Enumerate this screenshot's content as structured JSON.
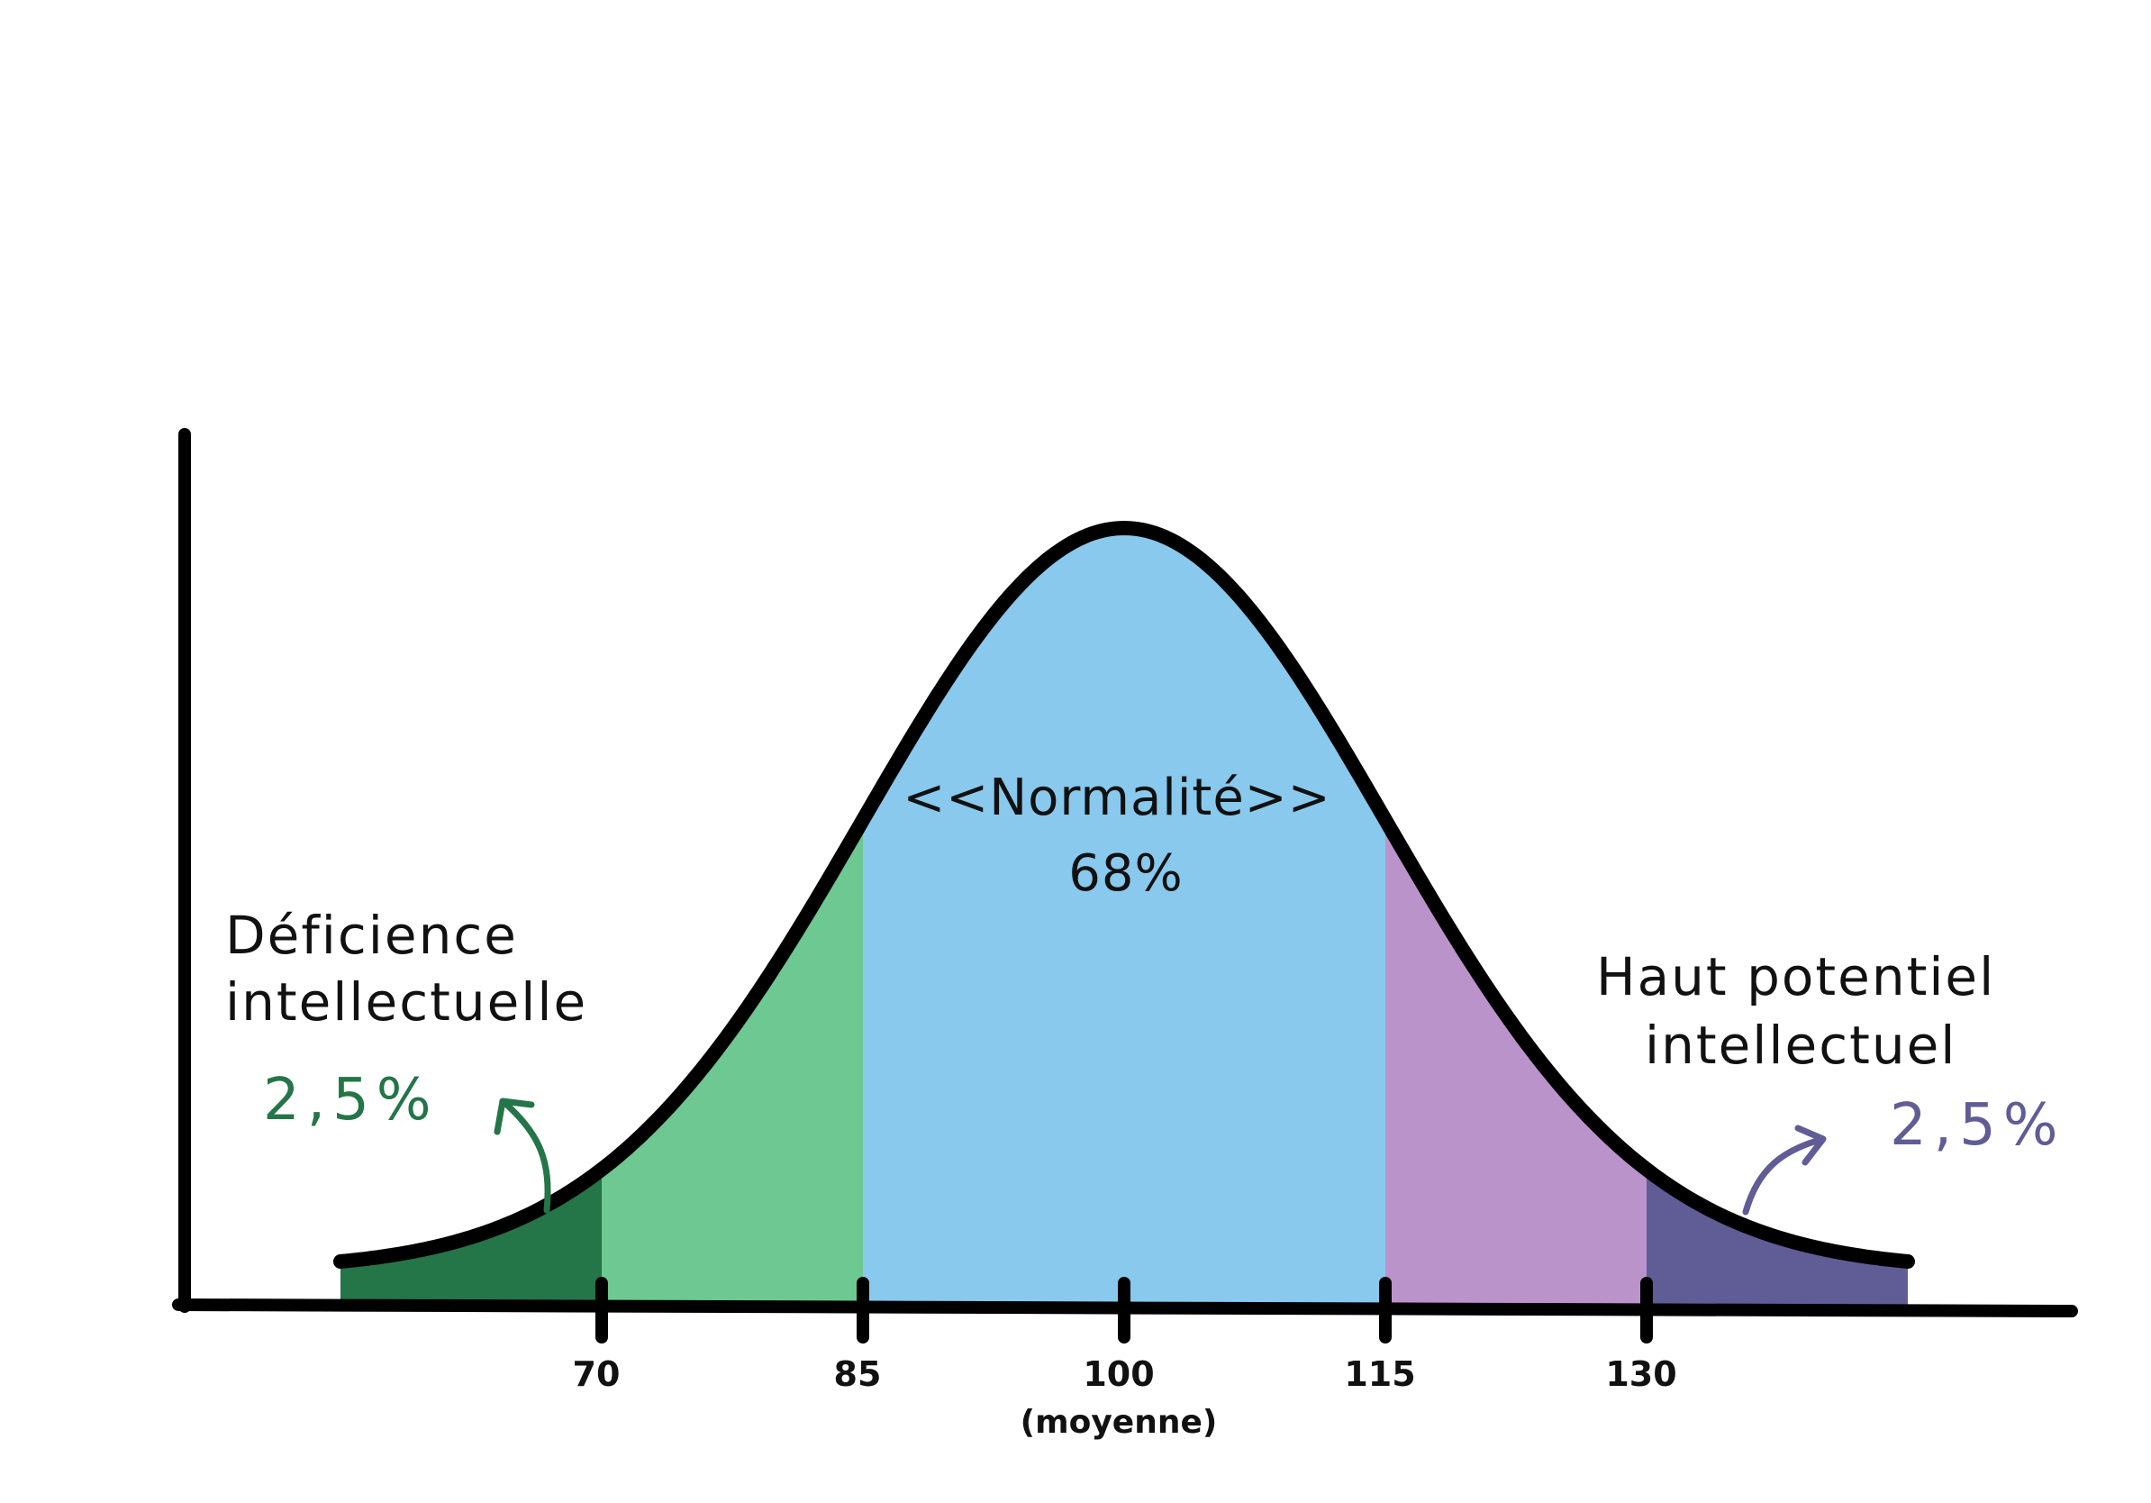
{
  "chart_data": {
    "type": "area",
    "title": "",
    "xlabel": "",
    "ylabel": "",
    "mean": 100,
    "sd": 15,
    "xlim": [
      55,
      145
    ],
    "ticks": [
      {
        "value": 70,
        "label": "70"
      },
      {
        "value": 85,
        "label": "85"
      },
      {
        "value": 100,
        "label": "100",
        "sublabel": "(moyenne)"
      },
      {
        "value": 115,
        "label": "115"
      },
      {
        "value": 130,
        "label": "130"
      }
    ],
    "regions": [
      {
        "from": 55,
        "to": 70,
        "color": "#247547"
      },
      {
        "from": 70,
        "to": 85,
        "color": "#6dc892"
      },
      {
        "from": 85,
        "to": 115,
        "color": "#88c9ed"
      },
      {
        "from": 115,
        "to": 130,
        "color": "#bb93cb"
      },
      {
        "from": 130,
        "to": 145,
        "color": "#605c96"
      }
    ],
    "annotations": {
      "left": {
        "line1": "Déficience",
        "line2": "intellectuelle",
        "percent": "2,5%",
        "color": "#247547"
      },
      "center": {
        "line1": "<<Normalité>>",
        "percent": "68%"
      },
      "right": {
        "line1": "Haut potentiel",
        "line2": "intellectuel",
        "percent": "2,5%",
        "color": "#605c96"
      }
    }
  }
}
